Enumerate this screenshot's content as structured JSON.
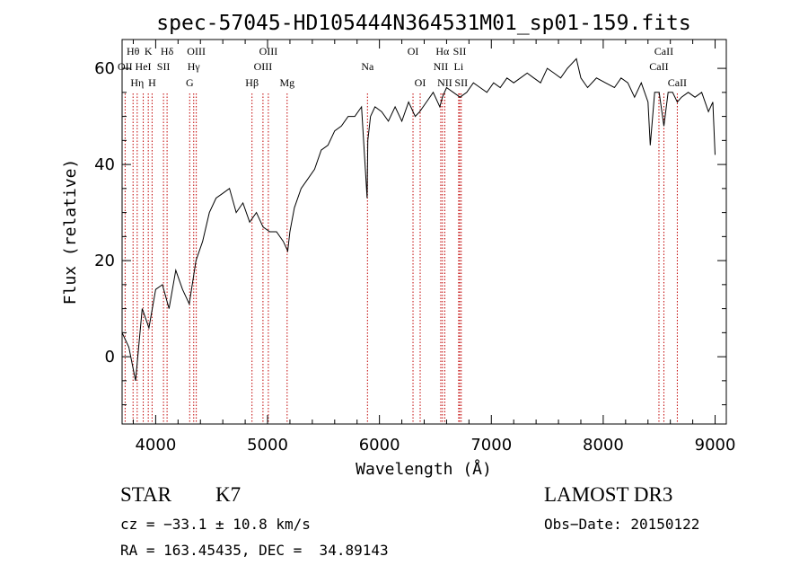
{
  "chart_data": {
    "type": "line",
    "title": "spec-57045-HD105444N364531M01_sp01-159.fits",
    "xlabel": "Wavelength (Å)",
    "ylabel": "Flux (relative)",
    "xlim": [
      3700,
      9100
    ],
    "ylim": [
      -14,
      66
    ],
    "x_ticks": [
      4000,
      5000,
      6000,
      7000,
      8000,
      9000
    ],
    "x_tick_labels": [
      "4000",
      "5000",
      "6000",
      "7000",
      "8000",
      "9000"
    ],
    "y_ticks": [
      0,
      20,
      40,
      60
    ],
    "y_tick_labels": [
      "0",
      "20",
      "40",
      "60"
    ],
    "grid": false,
    "series": [
      {
        "name": "spectrum",
        "x": [
          3700,
          3760,
          3820,
          3880,
          3940,
          4000,
          4060,
          4120,
          4180,
          4240,
          4300,
          4360,
          4420,
          4480,
          4540,
          4600,
          4660,
          4720,
          4780,
          4840,
          4900,
          4960,
          5020,
          5080,
          5140,
          5180,
          5200,
          5240,
          5300,
          5360,
          5420,
          5480,
          5540,
          5600,
          5660,
          5720,
          5780,
          5840,
          5890,
          5896,
          5920,
          5960,
          6020,
          6080,
          6140,
          6200,
          6260,
          6320,
          6360,
          6420,
          6480,
          6540,
          6563,
          6600,
          6660,
          6720,
          6780,
          6840,
          6900,
          6960,
          7020,
          7080,
          7140,
          7200,
          7260,
          7320,
          7380,
          7440,
          7500,
          7560,
          7620,
          7680,
          7760,
          7800,
          7860,
          7940,
          8020,
          8100,
          8160,
          8220,
          8280,
          8340,
          8400,
          8420,
          8460,
          8500,
          8542,
          8580,
          8620,
          8662,
          8700,
          8760,
          8820,
          8880,
          8940,
          8980,
          9000
        ],
        "y": [
          5,
          2,
          -5,
          10,
          6,
          14,
          15,
          10,
          18,
          14,
          11,
          20,
          24,
          30,
          33,
          34,
          35,
          30,
          32,
          28,
          30,
          27,
          26,
          26,
          24,
          22,
          26,
          31,
          35,
          37,
          39,
          43,
          44,
          47,
          48,
          50,
          50,
          52,
          33,
          45,
          50,
          52,
          51,
          49,
          52,
          49,
          53,
          50,
          51,
          53,
          55,
          52,
          54,
          56,
          55,
          54,
          55,
          57,
          56,
          55,
          57,
          56,
          58,
          57,
          58,
          59,
          58,
          57,
          60,
          59,
          58,
          60,
          62,
          58,
          56,
          58,
          57,
          56,
          58,
          57,
          54,
          57,
          53,
          44,
          55,
          55,
          48,
          55,
          55,
          53,
          54,
          55,
          54,
          55,
          51,
          53,
          42
        ]
      }
    ],
    "line_markers": [
      {
        "label": "Hθ",
        "wavelength": 3798,
        "row": 0
      },
      {
        "label": "OII",
        "wavelength": 3727,
        "row": 1
      },
      {
        "label": "Hη",
        "wavelength": 3835,
        "row": 2
      },
      {
        "label": "K",
        "wavelength": 3934,
        "row": 0
      },
      {
        "label": "HeI",
        "wavelength": 3889,
        "row": 1
      },
      {
        "label": "H",
        "wavelength": 3968,
        "row": 2
      },
      {
        "label": "SII",
        "wavelength": 4070,
        "row": 1
      },
      {
        "label": "Hδ",
        "wavelength": 4102,
        "row": 0
      },
      {
        "label": "OIII",
        "wavelength": 4363,
        "row": 0
      },
      {
        "label": "Hγ",
        "wavelength": 4340,
        "row": 1
      },
      {
        "label": "G",
        "wavelength": 4304,
        "row": 2
      },
      {
        "label": "Hβ",
        "wavelength": 4861,
        "row": 2
      },
      {
        "label": "OIII",
        "wavelength": 5007,
        "row": 0
      },
      {
        "label": "OIII",
        "wavelength": 4959,
        "row": 1
      },
      {
        "label": "Mg",
        "wavelength": 5175,
        "row": 2
      },
      {
        "label": "Na",
        "wavelength": 5893,
        "row": 1
      },
      {
        "label": "OI",
        "wavelength": 6300,
        "row": 0
      },
      {
        "label": "OI",
        "wavelength": 6364,
        "row": 2
      },
      {
        "label": "Hα",
        "wavelength": 6563,
        "row": 0
      },
      {
        "label": "NII",
        "wavelength": 6548,
        "row": 1
      },
      {
        "label": "NII",
        "wavelength": 6584,
        "row": 2
      },
      {
        "label": "SII",
        "wavelength": 6717,
        "row": 0
      },
      {
        "label": "Li",
        "wavelength": 6708,
        "row": 1
      },
      {
        "label": "SII",
        "wavelength": 6731,
        "row": 2
      },
      {
        "label": "CaII",
        "wavelength": 8542,
        "row": 0
      },
      {
        "label": "CaII",
        "wavelength": 8498,
        "row": 1
      },
      {
        "label": "CaII",
        "wavelength": 8662,
        "row": 2
      }
    ]
  },
  "info": {
    "object_class": "STAR",
    "subclass": "K7",
    "survey": "LAMOST DR3",
    "redshift": "cz = −33.1 ± 10.8 km/s",
    "obs_date": "Obs−Date: 20150122",
    "coords": "RA = 163.45435, DEC =  34.89143"
  }
}
